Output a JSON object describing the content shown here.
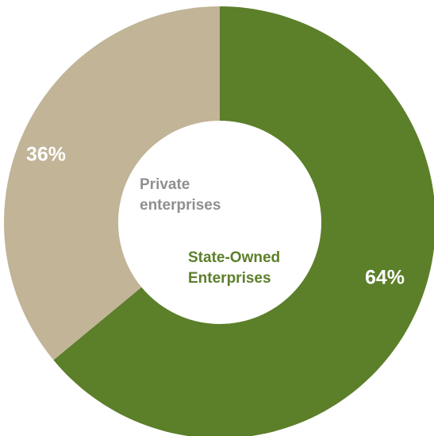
{
  "chart_data": {
    "type": "pie",
    "variant": "donut",
    "title": "",
    "slices": [
      {
        "label_lines": [
          "State-Owned",
          "Enterprises"
        ],
        "value": 64,
        "value_label": "64%",
        "color": "#5c7f2a",
        "label_color": "#5c7f2a"
      },
      {
        "label_lines": [
          "Private",
          "enterprises"
        ],
        "value": 36,
        "value_label": "36%",
        "color": "#c1b497",
        "label_color": "#8f8f8f"
      }
    ]
  }
}
